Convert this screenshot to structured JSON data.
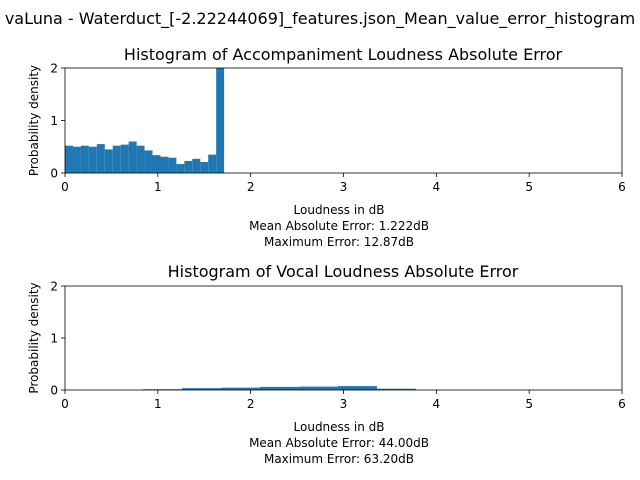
{
  "figure": {
    "suptitle": "vaLuna - Waterduct_[-2.22244069]_features.json_Mean_value_error_histogram"
  },
  "colors": {
    "bar": "#1f77b4",
    "axis": "#000000",
    "background": "#ffffff"
  },
  "chart_data": [
    {
      "type": "bar",
      "title": "Histogram of Accompaniment Loudness Absolute Error",
      "xlabel": "Loudness in dB",
      "ylabel": "Probability density",
      "xlim": [
        0,
        6
      ],
      "ylim": [
        0,
        2
      ],
      "xticks": [
        "0",
        "1",
        "2",
        "3",
        "4",
        "5",
        "6"
      ],
      "yticks": [
        "0",
        "1",
        "2"
      ],
      "grid": false,
      "notes": [
        "Mean Absolute Error: 1.222dB",
        "Maximum Error: 12.87dB"
      ],
      "bin_start": 0.0,
      "bin_width": 0.0857,
      "values": [
        0.52,
        0.5,
        0.52,
        0.5,
        0.55,
        0.45,
        0.52,
        0.54,
        0.6,
        0.52,
        0.43,
        0.34,
        0.31,
        0.29,
        0.17,
        0.23,
        0.27,
        0.21,
        0.35,
        2.0
      ]
    },
    {
      "type": "bar",
      "title": "Histogram of Vocal Loudness Absolute Error",
      "xlabel": "Loudness in dB",
      "ylabel": "Probability density",
      "xlim": [
        0,
        6
      ],
      "ylim": [
        0,
        2
      ],
      "xticks": [
        "0",
        "1",
        "2",
        "3",
        "4",
        "5",
        "6"
      ],
      "yticks": [
        "0",
        "1",
        "2"
      ],
      "grid": false,
      "notes": [
        "Mean Absolute Error: 44.00dB",
        "Maximum Error: 63.20dB"
      ],
      "bin_start": 0.0,
      "bin_width": 0.42,
      "values": [
        0.0,
        0.0,
        0.015,
        0.035,
        0.045,
        0.06,
        0.065,
        0.075,
        0.025,
        0.0,
        0.0,
        0.0,
        0.0,
        0.0,
        0.0
      ]
    }
  ]
}
